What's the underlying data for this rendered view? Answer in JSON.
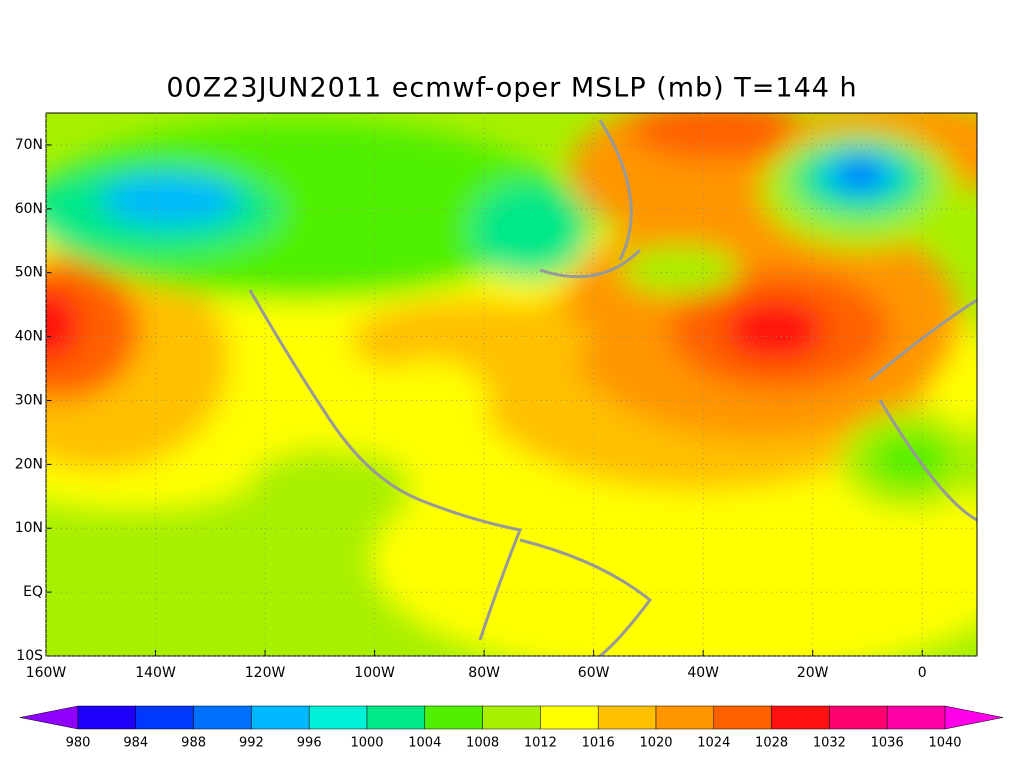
{
  "title": "00Z23JUN2011 ecmwf-oper MSLP (mb) T=144 h",
  "map": {
    "lon_range": [
      -160,
      10
    ],
    "lat_range": [
      -10,
      75
    ],
    "lon_ticks": [
      {
        "value": -160,
        "label": "160W"
      },
      {
        "value": -140,
        "label": "140W"
      },
      {
        "value": -120,
        "label": "120W"
      },
      {
        "value": -100,
        "label": "100W"
      },
      {
        "value": -80,
        "label": "80W"
      },
      {
        "value": -60,
        "label": "60W"
      },
      {
        "value": -40,
        "label": "40W"
      },
      {
        "value": -20,
        "label": "20W"
      },
      {
        "value": 0,
        "label": "0"
      }
    ],
    "lat_ticks": [
      {
        "value": 70,
        "label": "70N"
      },
      {
        "value": 60,
        "label": "60N"
      },
      {
        "value": 50,
        "label": "50N"
      },
      {
        "value": 40,
        "label": "40N"
      },
      {
        "value": 30,
        "label": "30N"
      },
      {
        "value": 20,
        "label": "20N"
      },
      {
        "value": 10,
        "label": "10N"
      },
      {
        "value": 0,
        "label": "EQ"
      },
      {
        "value": -10,
        "label": "10S"
      }
    ]
  },
  "colorbar": {
    "levels": [
      980,
      984,
      988,
      992,
      996,
      1000,
      1004,
      1008,
      1012,
      1016,
      1020,
      1024,
      1028,
      1032,
      1036,
      1040
    ],
    "colors": [
      "#9000ff",
      "#2000ff",
      "#0038ff",
      "#0070ff",
      "#00b8ff",
      "#00f0d8",
      "#00e888",
      "#50f000",
      "#a8f000",
      "#ffff00",
      "#ffc000",
      "#ff9600",
      "#ff6000",
      "#ff1010",
      "#ff0070",
      "#ff00a8",
      "#ff00e8"
    ]
  }
}
